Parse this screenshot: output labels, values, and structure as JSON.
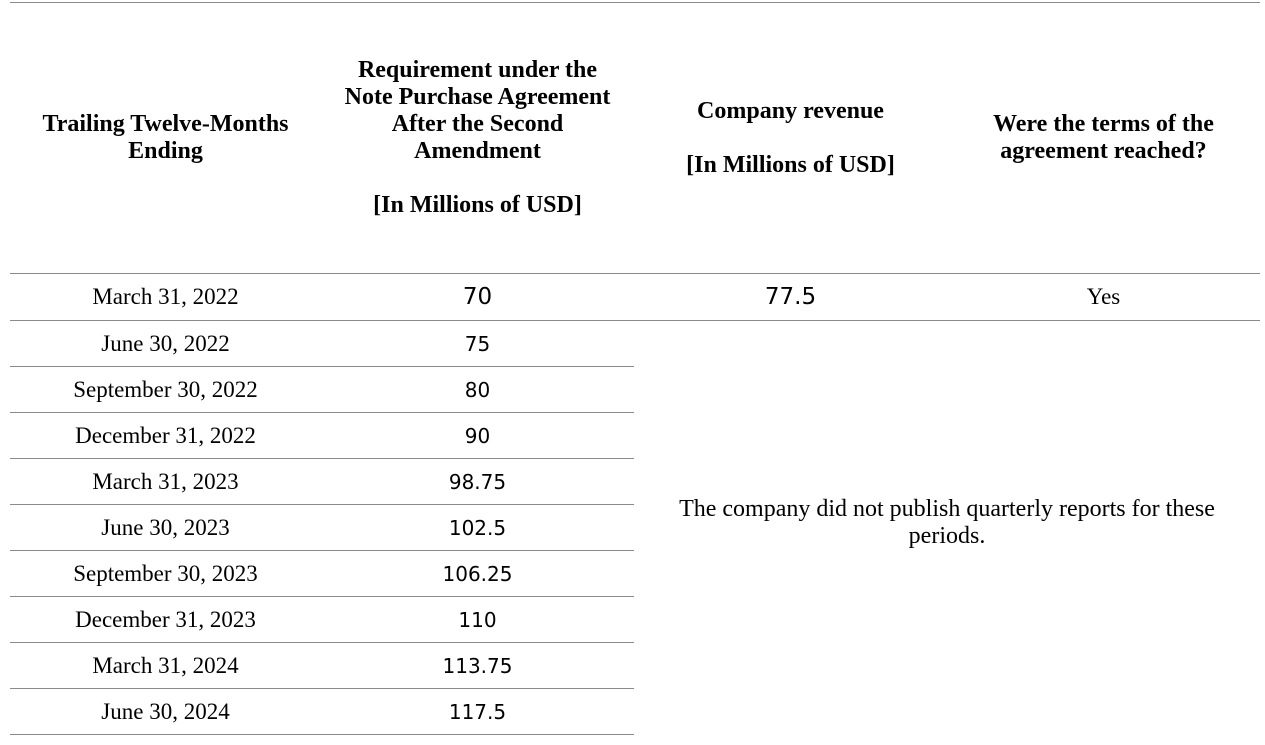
{
  "table": {
    "headers": {
      "period": "Trailing Twelve-Months Ending",
      "requirement": "Requirement under the Note Purchase Agreement After the Second Amendment",
      "requirement_unit": "[In Millions of USD]",
      "revenue": "Company revenue",
      "revenue_unit": "[In Millions of USD]",
      "terms_reached": "Were the terms of the agreement reached?"
    },
    "first_row": {
      "period": "March 31, 2022",
      "requirement": "70",
      "revenue": "77.5",
      "terms_reached": "Yes"
    },
    "rows": [
      {
        "period": "June 30, 2022",
        "requirement": "75"
      },
      {
        "period": "September 30, 2022",
        "requirement": "80"
      },
      {
        "period": "December 31, 2022",
        "requirement": "90"
      },
      {
        "period": "March 31, 2023",
        "requirement": "98.75"
      },
      {
        "period": "June 30, 2023",
        "requirement": "102.5"
      },
      {
        "period": "September 30, 2023",
        "requirement": "106.25"
      },
      {
        "period": "December 31, 2023",
        "requirement": "110"
      },
      {
        "period": "March 31, 2024",
        "requirement": "113.75"
      },
      {
        "period": "June 30, 2024",
        "requirement": "117.5"
      }
    ],
    "merged_note": "The company did not publish quarterly reports for these periods."
  }
}
